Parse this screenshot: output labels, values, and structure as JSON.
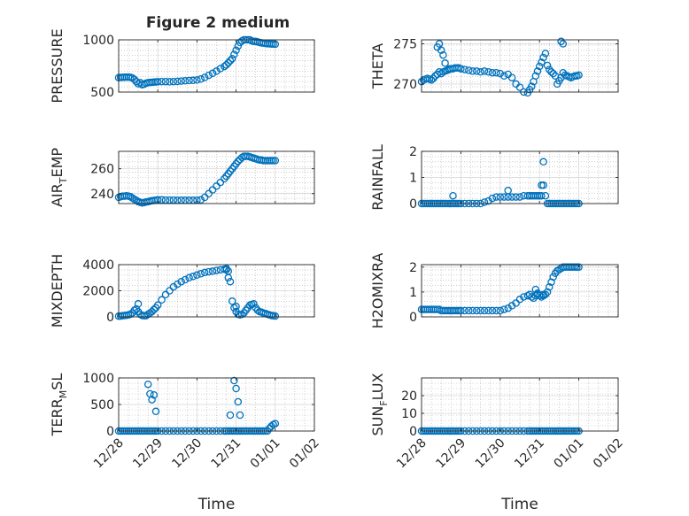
{
  "figure_title": "Figure 2 medium",
  "colors": {
    "marker": "#0072BD",
    "axis": "#262626",
    "grid": "#b0b0b0",
    "background": "#ffffff"
  },
  "chart_data": [
    {
      "type": "scatter",
      "name": "pressure",
      "title": "Figure 2 medium",
      "ylabel": "PRESSURE",
      "ylabel_parts": [
        "PRESSURE"
      ],
      "xlabel": "",
      "ylim": [
        500,
        1000
      ],
      "yticks": [
        500,
        1000
      ],
      "xlim": [
        "12/28",
        "01/02"
      ],
      "xticks": [
        "12/28",
        "12/29",
        "12/30",
        "12/31",
        "01/01",
        "01/02"
      ],
      "grid": "dotted",
      "marker": "open-circle",
      "x": [
        0.0,
        0.05,
        0.1,
        0.15,
        0.2,
        0.25,
        0.3,
        0.35,
        0.4,
        0.45,
        0.5,
        0.55,
        0.6,
        0.65,
        0.7,
        0.75,
        0.8,
        0.85,
        0.9,
        0.95,
        1.0,
        1.1,
        1.2,
        1.3,
        1.4,
        1.5,
        1.6,
        1.7,
        1.8,
        1.9,
        2.0,
        2.1,
        2.2,
        2.3,
        2.4,
        2.5,
        2.6,
        2.7,
        2.75,
        2.8,
        2.85,
        2.9,
        2.95,
        3.0,
        3.05,
        3.1,
        3.15,
        3.2,
        3.25,
        3.3,
        3.35,
        3.4,
        3.45,
        3.5,
        3.55,
        3.6,
        3.65,
        3.7,
        3.75,
        3.8,
        3.85,
        3.9,
        3.95,
        4.0
      ],
      "y": [
        638,
        640,
        641,
        642,
        643,
        643,
        641,
        635,
        620,
        600,
        580,
        590,
        570,
        575,
        585,
        590,
        592,
        593,
        595,
        597,
        598,
        600,
        600,
        598,
        600,
        602,
        605,
        608,
        610,
        612,
        615,
        625,
        640,
        660,
        680,
        700,
        725,
        745,
        760,
        780,
        800,
        820,
        860,
        900,
        940,
        975,
        990,
        1000,
        1000,
        1000,
        1000,
        990,
        985,
        985,
        980,
        975,
        970,
        968,
        965,
        963,
        962,
        960,
        959,
        958
      ]
    },
    {
      "type": "scatter",
      "name": "theta",
      "title": "",
      "ylabel": "THETA",
      "ylabel_parts": [
        "THETA"
      ],
      "xlabel": "",
      "ylim": [
        269,
        275.5
      ],
      "yticks": [
        270,
        275
      ],
      "xlim": [
        "12/28",
        "01/02"
      ],
      "xticks": [
        "12/28",
        "12/29",
        "12/30",
        "12/31",
        "01/01",
        "01/02"
      ],
      "grid": "dotted",
      "marker": "open-circle",
      "x": [
        0.0,
        0.05,
        0.1,
        0.15,
        0.2,
        0.25,
        0.3,
        0.35,
        0.4,
        0.45,
        0.5,
        0.55,
        0.6,
        0.65,
        0.7,
        0.75,
        0.8,
        0.85,
        0.9,
        0.95,
        1.0,
        1.1,
        1.2,
        1.3,
        1.4,
        1.5,
        1.6,
        1.7,
        1.8,
        1.9,
        2.0,
        2.1,
        2.2,
        2.3,
        2.4,
        2.5,
        2.6,
        2.7,
        2.75,
        2.8,
        2.85,
        2.9,
        2.95,
        3.0,
        3.05,
        3.1,
        3.15,
        3.2,
        3.25,
        3.3,
        3.35,
        3.4,
        3.45,
        3.5,
        3.55,
        3.6,
        3.65,
        3.7,
        3.75,
        3.8,
        3.85,
        3.9,
        3.95,
        4.0,
        0.4,
        0.45,
        0.5,
        0.55,
        0.6,
        0.7,
        3.55,
        3.6
      ],
      "y": [
        270.3,
        270.5,
        270.6,
        270.7,
        270.6,
        270.5,
        270.7,
        271.0,
        271.2,
        271.5,
        271.3,
        271.5,
        271.6,
        271.7,
        271.8,
        271.9,
        271.9,
        272.0,
        272.0,
        272.0,
        271.9,
        271.8,
        271.7,
        271.6,
        271.6,
        271.5,
        271.6,
        271.5,
        271.4,
        271.4,
        271.3,
        271.0,
        271.2,
        270.8,
        270.0,
        269.6,
        269.0,
        268.9,
        269.3,
        269.7,
        270.3,
        271.0,
        271.6,
        272.2,
        272.7,
        273.3,
        273.8,
        272.3,
        271.8,
        271.5,
        271.3,
        271.0,
        270.0,
        270.4,
        270.8,
        271.4,
        271.1,
        271.0,
        270.9,
        270.8,
        270.9,
        271.0,
        271.0,
        271.1,
        274.6,
        275.0,
        274.2,
        273.6,
        272.6,
        271.9,
        275.3,
        275.0
      ]
    },
    {
      "type": "scatter",
      "name": "air-temp",
      "title": "",
      "ylabel": "AIR_TEMP",
      "ylabel_parts": [
        "AIR",
        "T",
        "EMP"
      ],
      "xlabel": "",
      "ylim": [
        232,
        274
      ],
      "yticks": [
        240,
        260
      ],
      "xlim": [
        "12/28",
        "01/02"
      ],
      "xticks": [
        "12/28",
        "12/29",
        "12/30",
        "12/31",
        "01/01",
        "01/02"
      ],
      "grid": "dotted",
      "marker": "open-circle",
      "x": [
        0.0,
        0.05,
        0.1,
        0.15,
        0.2,
        0.25,
        0.3,
        0.35,
        0.4,
        0.45,
        0.5,
        0.55,
        0.6,
        0.65,
        0.7,
        0.75,
        0.8,
        0.85,
        0.9,
        0.95,
        1.0,
        1.1,
        1.2,
        1.3,
        1.4,
        1.5,
        1.6,
        1.7,
        1.8,
        1.9,
        2.0,
        2.1,
        2.2,
        2.3,
        2.4,
        2.5,
        2.6,
        2.7,
        2.75,
        2.8,
        2.85,
        2.9,
        2.95,
        3.0,
        3.05,
        3.1,
        3.15,
        3.2,
        3.25,
        3.3,
        3.35,
        3.4,
        3.45,
        3.5,
        3.55,
        3.6,
        3.65,
        3.7,
        3.75,
        3.8,
        3.85,
        3.9,
        3.95,
        4.0
      ],
      "y": [
        237,
        237.5,
        238,
        238,
        238.2,
        238,
        237.5,
        236.5,
        235.5,
        234.5,
        233.5,
        233,
        232.5,
        232.8,
        233.2,
        233.5,
        234,
        234.3,
        234.5,
        234.7,
        235,
        235,
        234.8,
        234.8,
        234.8,
        234.6,
        234.6,
        234.6,
        234.6,
        234.6,
        234.7,
        235,
        237,
        240,
        243,
        246,
        249,
        252,
        254,
        256,
        258,
        260,
        262,
        264,
        266,
        267.5,
        269,
        270,
        270,
        270,
        269.5,
        269,
        268.5,
        268,
        267.5,
        267,
        267,
        266.5,
        266.5,
        266.5,
        266.5,
        266.5,
        266.5,
        266.5
      ]
    },
    {
      "type": "scatter",
      "name": "rainfall",
      "title": "",
      "ylabel": "RAINFALL",
      "ylabel_parts": [
        "RAINFALL"
      ],
      "xlabel": "",
      "ylim": [
        0,
        2
      ],
      "yticks": [
        0,
        1,
        2
      ],
      "xlim": [
        "12/28",
        "01/02"
      ],
      "xticks": [
        "12/28",
        "12/29",
        "12/30",
        "12/31",
        "01/01",
        "01/02"
      ],
      "grid": "dotted",
      "marker": "open-circle",
      "x": [
        0.0,
        0.05,
        0.1,
        0.15,
        0.2,
        0.25,
        0.3,
        0.35,
        0.4,
        0.45,
        0.5,
        0.55,
        0.6,
        0.65,
        0.7,
        0.75,
        0.8,
        0.85,
        0.9,
        0.95,
        1.0,
        1.1,
        1.2,
        1.3,
        1.4,
        1.5,
        1.6,
        1.7,
        1.8,
        1.9,
        2.0,
        2.1,
        2.2,
        2.3,
        2.4,
        2.5,
        2.6,
        2.7,
        2.75,
        2.8,
        2.85,
        2.9,
        2.95,
        3.0,
        3.05,
        3.1,
        3.15,
        3.2,
        3.25,
        3.3,
        3.35,
        3.4,
        3.45,
        3.5,
        3.55,
        3.6,
        3.65,
        3.7,
        3.75,
        3.8,
        3.85,
        3.9,
        3.95,
        4.0,
        0.8,
        2.2,
        3.05,
        3.1
      ],
      "y": [
        0,
        0,
        0,
        0,
        0,
        0,
        0,
        0,
        0,
        0,
        0,
        0,
        0,
        0,
        0,
        0,
        0,
        0,
        0,
        0,
        0,
        0,
        0,
        0,
        0,
        0,
        0.05,
        0.1,
        0.2,
        0.25,
        0.25,
        0.25,
        0.25,
        0.25,
        0.25,
        0.25,
        0.3,
        0.3,
        0.3,
        0.3,
        0.3,
        0.3,
        0.3,
        0.3,
        0.3,
        0.7,
        0.3,
        0,
        0,
        0,
        0,
        0,
        0,
        0,
        0,
        0,
        0,
        0,
        0,
        0,
        0,
        0,
        0,
        0,
        0.3,
        0.5,
        0.7,
        1.6
      ]
    },
    {
      "type": "scatter",
      "name": "mixdepth",
      "title": "",
      "ylabel": "MIXDEPTH",
      "ylabel_parts": [
        "MIXDEPTH"
      ],
      "xlabel": "",
      "ylim": [
        0,
        4000
      ],
      "yticks": [
        0,
        2000,
        4000
      ],
      "xlim": [
        "12/28",
        "01/02"
      ],
      "xticks": [
        "12/28",
        "12/29",
        "12/30",
        "12/31",
        "01/01",
        "01/02"
      ],
      "grid": "dotted",
      "marker": "open-circle",
      "x": [
        0.0,
        0.05,
        0.1,
        0.15,
        0.2,
        0.25,
        0.3,
        0.35,
        0.4,
        0.45,
        0.5,
        0.55,
        0.6,
        0.65,
        0.7,
        0.75,
        0.8,
        0.85,
        0.9,
        0.95,
        1.0,
        1.1,
        1.2,
        1.3,
        1.4,
        1.5,
        1.6,
        1.7,
        1.8,
        1.9,
        2.0,
        2.1,
        2.2,
        2.3,
        2.4,
        2.5,
        2.6,
        2.7,
        2.75,
        2.8,
        2.85,
        2.9,
        2.95,
        3.0,
        3.05,
        3.1,
        3.15,
        3.2,
        3.25,
        3.3,
        3.35,
        3.4,
        3.45,
        3.5,
        3.55,
        3.6,
        3.65,
        3.7,
        3.75,
        3.8,
        3.85,
        3.9,
        3.95,
        4.0,
        0.5,
        2.75,
        2.8,
        3.0
      ],
      "y": [
        50,
        60,
        80,
        100,
        120,
        150,
        200,
        300,
        500,
        600,
        400,
        200,
        100,
        80,
        90,
        200,
        300,
        400,
        550,
        700,
        900,
        1300,
        1700,
        2000,
        2300,
        2500,
        2700,
        2850,
        3000,
        3100,
        3200,
        3300,
        3400,
        3450,
        3500,
        3550,
        3600,
        3650,
        3600,
        3000,
        2700,
        1200,
        700,
        400,
        200,
        150,
        200,
        300,
        500,
        700,
        900,
        950,
        1000,
        700,
        500,
        400,
        350,
        300,
        250,
        200,
        150,
        100,
        80,
        60,
        1000,
        3700,
        3500,
        800
      ]
    },
    {
      "type": "scatter",
      "name": "h2omixra",
      "title": "",
      "ylabel": "H2OMIXRA",
      "ylabel_parts": [
        "H2OMIXRA"
      ],
      "xlabel": "",
      "ylim": [
        0,
        2.1
      ],
      "yticks": [
        0,
        1,
        2
      ],
      "xlim": [
        "12/28",
        "01/02"
      ],
      "xticks": [
        "12/28",
        "12/29",
        "12/30",
        "12/31",
        "01/01",
        "01/02"
      ],
      "grid": "dotted",
      "marker": "open-circle",
      "x": [
        0.0,
        0.05,
        0.1,
        0.15,
        0.2,
        0.25,
        0.3,
        0.35,
        0.4,
        0.45,
        0.5,
        0.55,
        0.6,
        0.65,
        0.7,
        0.75,
        0.8,
        0.85,
        0.9,
        0.95,
        1.0,
        1.1,
        1.2,
        1.3,
        1.4,
        1.5,
        1.6,
        1.7,
        1.8,
        1.9,
        2.0,
        2.1,
        2.2,
        2.3,
        2.4,
        2.5,
        2.6,
        2.7,
        2.75,
        2.8,
        2.85,
        2.9,
        2.95,
        3.0,
        3.05,
        3.1,
        3.15,
        3.2,
        3.25,
        3.3,
        3.35,
        3.4,
        3.45,
        3.5,
        3.55,
        3.6,
        3.65,
        3.7,
        3.75,
        3.8,
        3.85,
        3.9,
        3.95,
        4.0,
        2.9,
        2.95,
        3.1
      ],
      "y": [
        0.3,
        0.3,
        0.3,
        0.3,
        0.3,
        0.3,
        0.3,
        0.3,
        0.3,
        0.3,
        0.25,
        0.25,
        0.25,
        0.25,
        0.25,
        0.25,
        0.25,
        0.25,
        0.25,
        0.25,
        0.25,
        0.25,
        0.25,
        0.25,
        0.25,
        0.25,
        0.25,
        0.25,
        0.25,
        0.25,
        0.25,
        0.3,
        0.35,
        0.45,
        0.55,
        0.7,
        0.8,
        0.85,
        0.9,
        0.8,
        0.75,
        0.85,
        0.9,
        0.85,
        0.8,
        0.85,
        0.9,
        1.0,
        1.2,
        1.4,
        1.6,
        1.75,
        1.85,
        1.9,
        1.95,
        2.0,
        2.0,
        2.0,
        2.0,
        2.0,
        2.0,
        2.0,
        2.0,
        2.0,
        1.1,
        0.95,
        0.9
      ]
    },
    {
      "type": "scatter",
      "name": "terr-msl",
      "title": "",
      "ylabel": "TERR_MSL",
      "ylabel_parts": [
        "TERR",
        "M",
        "SL"
      ],
      "xlabel": "Time",
      "ylim": [
        0,
        1000
      ],
      "yticks": [
        0,
        500,
        1000
      ],
      "xlim": [
        "12/28",
        "01/02"
      ],
      "xticks": [
        "12/28",
        "12/29",
        "12/30",
        "12/31",
        "01/01",
        "01/02"
      ],
      "grid": "dotted",
      "marker": "open-circle",
      "x": [
        0.0,
        0.05,
        0.1,
        0.15,
        0.2,
        0.25,
        0.3,
        0.35,
        0.4,
        0.45,
        0.5,
        0.55,
        0.6,
        0.65,
        0.7,
        0.75,
        0.8,
        0.85,
        0.9,
        0.95,
        1.0,
        1.1,
        1.2,
        1.3,
        1.4,
        1.5,
        1.6,
        1.7,
        1.8,
        1.9,
        2.0,
        2.1,
        2.2,
        2.3,
        2.4,
        2.5,
        2.6,
        2.7,
        2.75,
        2.8,
        2.85,
        2.9,
        2.95,
        3.0,
        3.05,
        3.1,
        3.15,
        3.2,
        3.25,
        3.3,
        3.35,
        3.4,
        3.45,
        3.5,
        3.55,
        3.6,
        3.65,
        3.7,
        3.75,
        3.8,
        3.85,
        3.9,
        3.95,
        4.0,
        0.75,
        0.8,
        0.85,
        0.9,
        0.95,
        2.85,
        2.95,
        3.0,
        3.05,
        3.1
      ],
      "y": [
        0,
        0,
        0,
        0,
        0,
        0,
        0,
        0,
        0,
        0,
        0,
        0,
        0,
        0,
        0,
        0,
        0,
        0,
        0,
        0,
        0,
        0,
        0,
        0,
        0,
        0,
        0,
        0,
        0,
        0,
        0,
        0,
        0,
        0,
        0,
        0,
        0,
        0,
        0,
        0,
        0,
        0,
        0,
        0,
        0,
        0,
        0,
        0,
        0,
        0,
        0,
        0,
        0,
        0,
        0,
        0,
        0,
        0,
        0,
        0,
        50,
        90,
        120,
        140,
        880,
        700,
        590,
        680,
        370,
        300,
        950,
        800,
        550,
        300
      ]
    },
    {
      "type": "scatter",
      "name": "sun-flux",
      "title": "",
      "ylabel": "SUN_FLUX",
      "ylabel_parts": [
        "SUN",
        "F",
        "LUX"
      ],
      "xlabel": "Time",
      "ylim": [
        0,
        30
      ],
      "yticks": [
        0,
        10,
        20
      ],
      "xlim": [
        "12/28",
        "01/02"
      ],
      "xticks": [
        "12/28",
        "12/29",
        "12/30",
        "12/31",
        "01/01",
        "01/02"
      ],
      "grid": "dotted",
      "marker": "open-circle",
      "x": [
        0.0,
        0.05,
        0.1,
        0.15,
        0.2,
        0.25,
        0.3,
        0.35,
        0.4,
        0.45,
        0.5,
        0.55,
        0.6,
        0.65,
        0.7,
        0.75,
        0.8,
        0.85,
        0.9,
        0.95,
        1.0,
        1.1,
        1.2,
        1.3,
        1.4,
        1.5,
        1.6,
        1.7,
        1.8,
        1.9,
        2.0,
        2.1,
        2.2,
        2.3,
        2.4,
        2.5,
        2.6,
        2.7,
        2.75,
        2.8,
        2.85,
        2.9,
        2.95,
        3.0,
        3.05,
        3.1,
        3.15,
        3.2,
        3.25,
        3.3,
        3.35,
        3.4,
        3.45,
        3.5,
        3.55,
        3.6,
        3.65,
        3.7,
        3.75,
        3.8,
        3.85,
        3.9,
        3.95,
        4.0
      ],
      "y": [
        0,
        0,
        0,
        0,
        0,
        0,
        0,
        0,
        0,
        0,
        0,
        0,
        0,
        0,
        0,
        0,
        0,
        0,
        0,
        0,
        0,
        0,
        0,
        0,
        0,
        0,
        0,
        0,
        0,
        0,
        0,
        0,
        0,
        0,
        0,
        0,
        0,
        0,
        0,
        0,
        0,
        0,
        0,
        0,
        0,
        0,
        0,
        0,
        0,
        0,
        0,
        0,
        0,
        0,
        0,
        0,
        0,
        0,
        0,
        0,
        0,
        0,
        0,
        0
      ]
    }
  ]
}
